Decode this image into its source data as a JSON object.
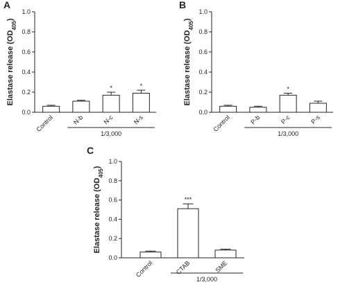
{
  "chart_data": [
    {
      "type": "bar",
      "panel": "A",
      "ylabel": {
        "text": "Elastase release (OD",
        "subscript": "405",
        "close": ")"
      },
      "categories": [
        "Control",
        "N-b",
        "N-c",
        "N-s"
      ],
      "values": [
        0.06,
        0.11,
        0.17,
        0.19
      ],
      "errors": [
        0.01,
        0.01,
        0.03,
        0.03
      ],
      "annotations": [
        null,
        null,
        "*",
        "*"
      ],
      "group_label": "1/3,000",
      "ylim": [
        0,
        1
      ],
      "yticks": [
        {
          "value": 0,
          "label": "0.0"
        },
        0.2,
        0.4,
        0.6,
        0.8,
        {
          "value": 1,
          "label": "1.0"
        }
      ],
      "color": "#ffffff"
    },
    {
      "type": "bar",
      "panel": "B",
      "ylabel": {
        "text": "Elastase release (OD",
        "subscript": "405",
        "close": ")"
      },
      "categories": [
        "Control",
        "P-b",
        "P-c",
        "P-s"
      ],
      "values": [
        0.06,
        0.05,
        0.17,
        0.09
      ],
      "errors": [
        0.01,
        0.01,
        0.02,
        0.02
      ],
      "annotations": [
        null,
        null,
        "*",
        null
      ],
      "group_label": "1/3,000",
      "ylim": [
        0,
        1
      ],
      "yticks": [
        {
          "value": 0,
          "label": "0.0"
        },
        0.2,
        0.4,
        0.6,
        0.8,
        {
          "value": 1,
          "label": "1.0"
        }
      ],
      "color": "#ffffff"
    },
    {
      "type": "bar",
      "panel": "C",
      "ylabel": {
        "text": "Elastase release (OD",
        "subscript": "405",
        "close": ")"
      },
      "categories": [
        "Control",
        "CTAB",
        "SME"
      ],
      "values": [
        0.06,
        0.51,
        0.08
      ],
      "errors": [
        0.01,
        0.05,
        0.01
      ],
      "annotations": [
        null,
        "***",
        null
      ],
      "group_label": "1/3,000",
      "ylim": [
        0,
        1
      ],
      "yticks": [
        {
          "value": 0,
          "label": "0.0"
        },
        0.2,
        0.4,
        0.6,
        0.8,
        {
          "value": 1,
          "label": "1.0"
        }
      ],
      "color": "#ffffff"
    }
  ]
}
